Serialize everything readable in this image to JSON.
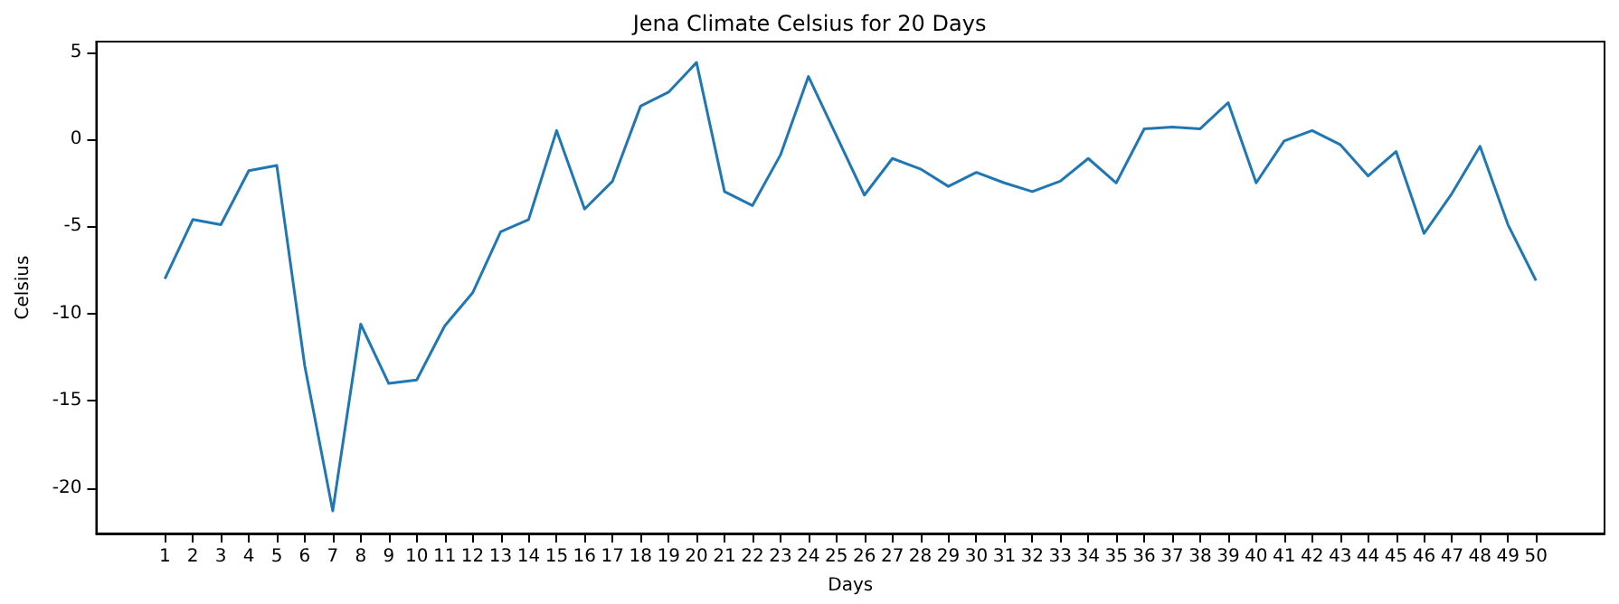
{
  "chart_data": {
    "type": "line",
    "title": "Jena Climate Celsius for 20 Days",
    "xlabel": "Days",
    "ylabel": "Celsius",
    "x": [
      1,
      2,
      3,
      4,
      5,
      6,
      7,
      8,
      9,
      10,
      11,
      12,
      13,
      14,
      15,
      16,
      17,
      18,
      19,
      20,
      21,
      22,
      23,
      24,
      25,
      26,
      27,
      28,
      29,
      30,
      31,
      32,
      33,
      34,
      35,
      36,
      37,
      38,
      39,
      40,
      41,
      42,
      43,
      44,
      45,
      46,
      47,
      48,
      49,
      50
    ],
    "series": [
      {
        "color": "#1f77b4",
        "values": [
          -8.0,
          -4.6,
          -4.9,
          -1.8,
          -1.5,
          -13.0,
          -21.3,
          -10.6,
          -14.0,
          -13.8,
          -10.7,
          -8.8,
          -5.3,
          -4.6,
          0.5,
          -4.0,
          -2.4,
          1.9,
          2.7,
          4.4,
          -3.0,
          -3.8,
          -0.9,
          3.6,
          0.2,
          -3.2,
          -1.1,
          -1.7,
          -2.7,
          -1.9,
          -2.5,
          -3.0,
          -2.4,
          -1.1,
          -2.5,
          0.6,
          0.7,
          0.6,
          2.1,
          -2.5,
          -0.1,
          0.5,
          -0.3,
          -2.1,
          -0.7,
          -5.4,
          -3.1,
          -0.4,
          -4.9,
          -8.1
        ]
      }
    ],
    "xlim": [
      -1.45,
      52.45
    ],
    "xticks": [
      1,
      2,
      3,
      4,
      5,
      6,
      7,
      8,
      9,
      10,
      11,
      12,
      13,
      14,
      15,
      16,
      17,
      18,
      19,
      20,
      21,
      22,
      23,
      24,
      25,
      26,
      27,
      28,
      29,
      30,
      31,
      32,
      33,
      34,
      35,
      36,
      37,
      38,
      39,
      40,
      41,
      42,
      43,
      44,
      45,
      46,
      47,
      48,
      49,
      50
    ],
    "ylim": [
      -22.6,
      5.6
    ],
    "yticks": [
      -20,
      -15,
      -10,
      -5,
      0,
      5
    ],
    "grid": false,
    "marker": "none",
    "line_style": "solid"
  }
}
